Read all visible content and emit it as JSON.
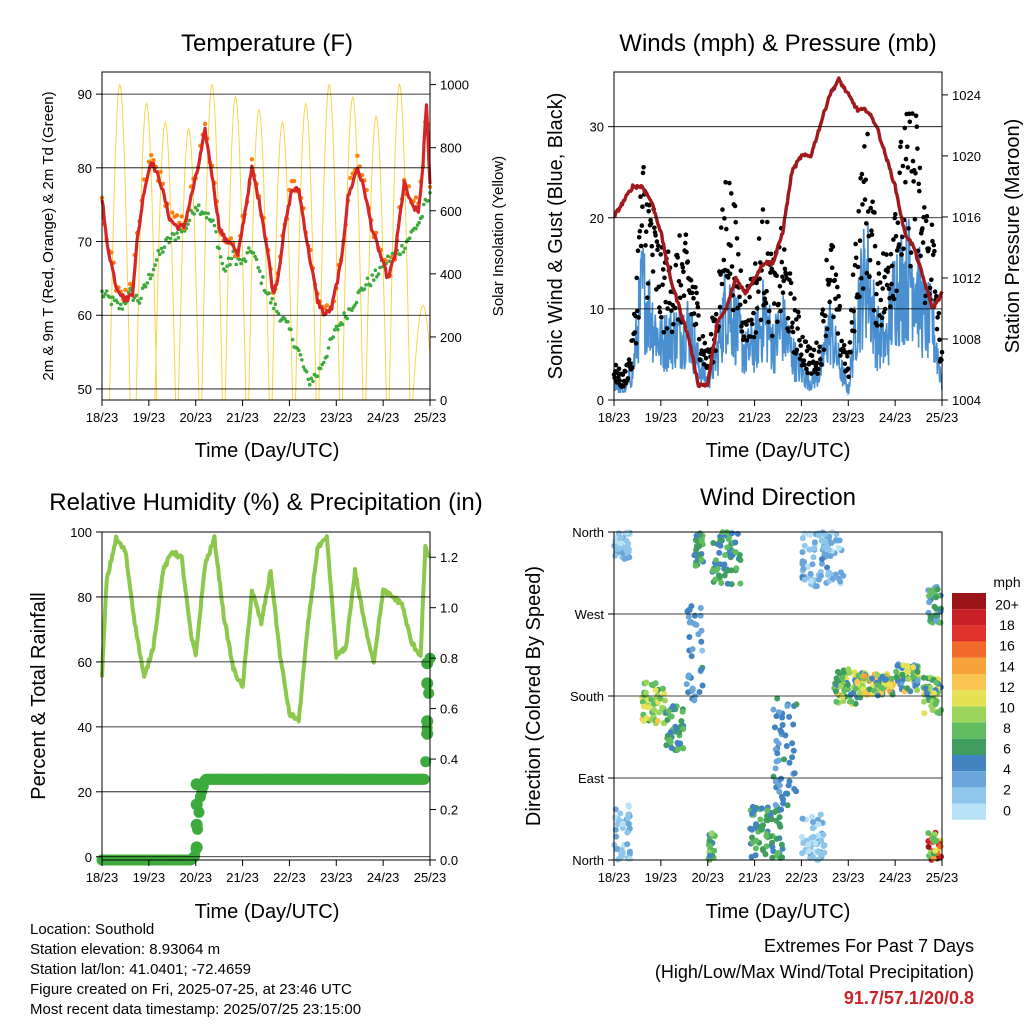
{
  "x_ticks": [
    "18/23",
    "19/23",
    "20/23",
    "21/23",
    "22/23",
    "23/23",
    "24/23",
    "25/23"
  ],
  "colors": {
    "temp2m": "#d62728",
    "temp9m": "#ff7f0e",
    "dewpoint": "#3daa3d",
    "solar": "#f5d64a",
    "wind": "#4a90d0",
    "gust": "#000000",
    "pressure": "#a0191d",
    "humidity": "#8cc84b",
    "rain": "#3daa3d",
    "extremes": "#c8242a"
  },
  "speed_colors": [
    "#b8e2f5",
    "#8ec6eb",
    "#6aa6d9",
    "#4283c2",
    "#3f9e5f",
    "#5fbd5f",
    "#9bd45a",
    "#e7e255",
    "#f8c550",
    "#f7a33a",
    "#f26b2b",
    "#e0322a",
    "#c81e26",
    "#9a1418"
  ],
  "chart_data": [
    {
      "type": "line",
      "title": "Temperature (F)",
      "xlabel": "Time (Day/UTC)",
      "ylabel": "2m & 9m T (Red, Orange) & 2m Td (Green)",
      "ylabel_right": "Solar Insolation (Yellow)",
      "ylim": [
        48.5,
        93
      ],
      "ylim_right": [
        0,
        1040
      ],
      "xlim": [
        0,
        7
      ],
      "yticks": [
        50,
        60,
        70,
        80,
        90
      ],
      "yticks_right": [
        0,
        200,
        400,
        600,
        800,
        1000
      ],
      "grid": true,
      "series": [
        {
          "x": [
            0,
            0.1,
            0.3,
            0.5,
            0.65,
            0.75,
            0.9,
            1.05,
            1.25,
            1.45,
            1.6,
            1.75,
            1.9,
            2.05,
            2.2,
            2.35,
            2.5,
            2.65,
            2.75,
            2.9,
            3.05,
            3.2,
            3.4,
            3.55,
            3.65,
            3.75,
            3.9,
            4.05,
            4.2,
            4.4,
            4.6,
            4.75,
            4.9,
            5.1,
            5.25,
            5.45,
            5.6,
            5.75,
            5.95,
            6.1,
            6.25,
            6.45,
            6.6,
            6.75,
            6.85,
            6.92,
            7
          ],
          "values": [
            76,
            70,
            64,
            62,
            63,
            70,
            77,
            81,
            78,
            73,
            72,
            72,
            76,
            80,
            85,
            79,
            72,
            70,
            70,
            68,
            74,
            80,
            74,
            68,
            63,
            65,
            72,
            77,
            77,
            69,
            62,
            60,
            61,
            67,
            76,
            80,
            77,
            72,
            68,
            65,
            68,
            78,
            75,
            74,
            80,
            89,
            78
          ]
        },
        {
          "x": [
            0,
            0.3,
            0.6,
            0.8,
            1.1,
            1.5,
            2.0,
            2.3,
            2.6,
            3.0,
            3.4,
            3.7,
            4.0,
            4.4,
            4.7,
            5.0,
            5.3,
            5.6,
            6.0,
            6.3,
            6.6,
            6.8,
            7
          ],
          "values": [
            64,
            67,
            61,
            66,
            80,
            72,
            77,
            84,
            71,
            70,
            77,
            63,
            74,
            76,
            58,
            63,
            77,
            78,
            66,
            72,
            82,
            90,
            77
          ]
        },
        {
          "x": [
            0,
            0.2,
            0.4,
            0.6,
            0.8,
            1.0,
            1.2,
            1.4,
            1.6,
            1.8,
            2.0,
            2.2,
            2.4,
            2.6,
            2.8,
            3.0,
            3.2,
            3.4,
            3.6,
            3.8,
            4.0,
            4.2,
            4.4,
            4.6,
            4.8,
            5.0,
            5.2,
            5.4,
            5.6,
            5.8,
            6.0,
            6.2,
            6.4,
            6.6,
            6.8,
            6.9,
            7
          ],
          "values": [
            63,
            62,
            61,
            63,
            62,
            65,
            68,
            70,
            71,
            72,
            75,
            74,
            72,
            66,
            68,
            67,
            69,
            65,
            62,
            60,
            58,
            55,
            51,
            52,
            55,
            58,
            60,
            62,
            64,
            65,
            67,
            68,
            69,
            71,
            73,
            75,
            76
          ]
        },
        {
          "peaks_x": [
            0.38,
            0.95,
            1.35,
            1.85,
            2.35,
            2.85,
            3.35,
            3.85,
            4.35,
            4.85,
            5.35,
            5.85,
            6.35,
            6.85
          ],
          "peaks": [
            1000,
            940,
            880,
            860,
            1000,
            960,
            920,
            880,
            940,
            1000,
            960,
            900,
            1000,
            300
          ]
        }
      ]
    },
    {
      "type": "scatter",
      "title": "Winds (mph) & Pressure (mb)",
      "xlabel": "Time (Day/UTC)",
      "ylabel": "Sonic Wind & Gust (Blue, Black)",
      "ylabel_right": "Station Pressure (Maroon)",
      "ylim": [
        0,
        36
      ],
      "ylim_right": [
        1004,
        1025.5
      ],
      "xlim": [
        0,
        7
      ],
      "yticks": [
        0,
        10,
        20,
        30
      ],
      "yticks_right": [
        1004,
        1008,
        1012,
        1016,
        1020,
        1024
      ],
      "grid": true,
      "series": [
        {
          "x": [
            0,
            0.2,
            0.4,
            0.6,
            0.8,
            1.0,
            1.2,
            1.4,
            1.6,
            1.8,
            2.0,
            2.2,
            2.4,
            2.6,
            2.8,
            3.0,
            3.2,
            3.4,
            3.6,
            3.8,
            4.0,
            4.2,
            4.4,
            4.6,
            4.8,
            5.0,
            5.2,
            5.4,
            5.6,
            5.8,
            6.0,
            6.2,
            6.4,
            6.6,
            6.8,
            7
          ],
          "values": [
            2,
            1,
            3,
            12,
            9,
            6,
            7,
            7,
            8,
            4,
            2,
            5,
            11,
            8,
            5,
            6,
            9,
            6,
            8,
            5,
            3,
            2,
            3,
            8,
            4,
            1,
            10,
            14,
            7,
            6,
            12,
            13,
            14,
            9,
            8,
            2
          ]
        },
        {
          "x": [
            0,
            0.2,
            0.4,
            0.6,
            0.8,
            1.0,
            1.2,
            1.4,
            1.6,
            1.8,
            2.0,
            2.2,
            2.4,
            2.6,
            2.8,
            3.0,
            3.2,
            3.4,
            3.6,
            3.8,
            4.0,
            4.2,
            4.4,
            4.6,
            4.8,
            5.0,
            5.2,
            5.4,
            5.6,
            5.8,
            6.0,
            6.2,
            6.4,
            6.6,
            6.8,
            7
          ],
          "values": [
            3,
            2,
            5,
            20,
            17,
            12,
            12,
            13,
            13,
            8,
            4,
            9,
            20,
            15,
            9,
            11,
            16,
            11,
            14,
            9,
            6,
            4,
            5,
            15,
            8,
            3,
            17,
            22,
            13,
            12,
            19,
            22,
            25,
            17,
            15,
            4
          ]
        },
        {
          "x": [
            0,
            0.2,
            0.4,
            0.6,
            0.8,
            1.0,
            1.2,
            1.4,
            1.6,
            1.8,
            2.0,
            2.2,
            2.4,
            2.6,
            2.8,
            3.0,
            3.2,
            3.4,
            3.6,
            3.8,
            4.0,
            4.2,
            4.4,
            4.6,
            4.8,
            5.0,
            5.2,
            5.4,
            5.6,
            5.8,
            6.0,
            6.2,
            6.4,
            6.6,
            6.8,
            7
          ],
          "values": [
            1016,
            1017,
            1018,
            1018,
            1017,
            1015,
            1012,
            1010,
            1008,
            1005,
            1005,
            1009,
            1010,
            1012,
            1011,
            1012,
            1013,
            1013,
            1015,
            1019,
            1020,
            1020,
            1022,
            1024,
            1025,
            1024,
            1023,
            1023,
            1022,
            1020,
            1018,
            1015,
            1014,
            1012,
            1010,
            1011
          ]
        }
      ]
    },
    {
      "type": "line",
      "title": "Relative Humidity (%) & Precipitation (in)",
      "xlabel": "Time (Day/UTC)",
      "ylabel": "Percent & Total Rainfall",
      "ylim": [
        -1,
        100
      ],
      "ylim_right": [
        0,
        1.3
      ],
      "xlim": [
        0,
        7
      ],
      "yticks": [
        0,
        20,
        40,
        60,
        80,
        100
      ],
      "yticks_right": [
        0.0,
        0.2,
        0.4,
        0.6,
        0.8,
        1.0,
        1.2
      ],
      "grid": true,
      "series": [
        {
          "x": [
            0,
            0.1,
            0.3,
            0.5,
            0.7,
            0.9,
            1.1,
            1.3,
            1.5,
            1.7,
            1.9,
            2.0,
            2.2,
            2.4,
            2.6,
            2.8,
            3.0,
            3.2,
            3.4,
            3.6,
            3.8,
            4.0,
            4.2,
            4.4,
            4.6,
            4.8,
            5.0,
            5.2,
            5.4,
            5.6,
            5.8,
            6.0,
            6.2,
            6.4,
            6.6,
            6.8,
            6.9,
            7
          ],
          "values": [
            56,
            85,
            98,
            94,
            72,
            55,
            65,
            88,
            94,
            92,
            68,
            62,
            90,
            98,
            74,
            58,
            52,
            82,
            72,
            88,
            62,
            44,
            42,
            72,
            95,
            98,
            62,
            64,
            88,
            72,
            60,
            82,
            80,
            78,
            66,
            62,
            95,
            92
          ]
        },
        {
          "x": [
            0,
            0.5,
            1.0,
            1.5,
            1.9,
            2.0,
            2.05,
            2.1,
            2.2,
            3.0,
            4.0,
            5.0,
            6.0,
            6.9,
            6.92,
            6.95,
            6.98,
            7
          ],
          "values": [
            0,
            0,
            0,
            0,
            0,
            0.02,
            0.15,
            0.25,
            0.32,
            0.32,
            0.32,
            0.32,
            0.32,
            0.32,
            0.48,
            0.55,
            0.72,
            0.8
          ]
        }
      ]
    },
    {
      "type": "scatter",
      "title": "Wind Direction",
      "xlabel": "Time (Day/UTC)",
      "ylabel": "Direction (Colored By Speed)",
      "yticks": [
        "North",
        "East",
        "South",
        "West",
        "North"
      ],
      "ylim": [
        0,
        360
      ],
      "xlim": [
        0,
        7
      ],
      "grid": true,
      "legend": {
        "title": "mph",
        "labels": [
          "20+",
          "18",
          "16",
          "14",
          "12",
          "10",
          "8",
          "6",
          "4",
          "2",
          "0"
        ],
        "placement": "right"
      },
      "clusters": [
        {
          "x0": 0.0,
          "x1": 0.35,
          "d0": 330,
          "d1": 360,
          "s0": 0,
          "s1": 3
        },
        {
          "x0": 0.0,
          "x1": 0.35,
          "d0": 0,
          "d1": 60,
          "s0": 0,
          "s1": 3
        },
        {
          "x0": 0.6,
          "x1": 1.1,
          "d0": 150,
          "d1": 195,
          "s0": 6,
          "s1": 12
        },
        {
          "x0": 1.1,
          "x1": 1.5,
          "d0": 120,
          "d1": 170,
          "s0": 4,
          "s1": 8
        },
        {
          "x0": 1.55,
          "x1": 1.9,
          "d0": 170,
          "d1": 280,
          "s0": 2,
          "s1": 6
        },
        {
          "x0": 1.7,
          "x1": 1.9,
          "d0": 320,
          "d1": 360,
          "s0": 5,
          "s1": 8
        },
        {
          "x0": 2.1,
          "x1": 2.7,
          "d0": 300,
          "d1": 360,
          "s0": 4,
          "s1": 8
        },
        {
          "x0": 2.0,
          "x1": 2.15,
          "d0": 0,
          "d1": 30,
          "s0": 4,
          "s1": 10
        },
        {
          "x0": 2.9,
          "x1": 3.6,
          "d0": 0,
          "d1": 60,
          "s0": 4,
          "s1": 8
        },
        {
          "x0": 3.4,
          "x1": 3.9,
          "d0": 60,
          "d1": 180,
          "s0": 3,
          "s1": 6
        },
        {
          "x0": 4.0,
          "x1": 4.9,
          "d0": 300,
          "d1": 360,
          "s0": 0,
          "s1": 4
        },
        {
          "x0": 4.0,
          "x1": 4.5,
          "d0": 0,
          "d1": 50,
          "s0": 0,
          "s1": 3
        },
        {
          "x0": 4.7,
          "x1": 5.3,
          "d0": 170,
          "d1": 210,
          "s0": 4,
          "s1": 12
        },
        {
          "x0": 5.3,
          "x1": 6.0,
          "d0": 180,
          "d1": 205,
          "s0": 4,
          "s1": 14
        },
        {
          "x0": 6.0,
          "x1": 6.5,
          "d0": 185,
          "d1": 215,
          "s0": 3,
          "s1": 12
        },
        {
          "x0": 6.6,
          "x1": 7.0,
          "d0": 160,
          "d1": 200,
          "s0": 4,
          "s1": 12
        },
        {
          "x0": 6.7,
          "x1": 7.0,
          "d0": 0,
          "d1": 30,
          "s0": 6,
          "s1": 20
        },
        {
          "x0": 6.7,
          "x1": 7.0,
          "d0": 260,
          "d1": 300,
          "s0": 3,
          "s1": 8
        }
      ]
    }
  ],
  "info": {
    "location": "Location: Southold",
    "elevation": "Station elevation: 8.93064 m",
    "latlon": "Station lat/lon: 41.0401; -72.4659",
    "created": "Figure created on Fri, 2025-07-25, at 23:46 UTC",
    "recent": "Most recent data timestamp: 2025/07/25 23:15:00"
  },
  "extremes": {
    "line1": "Extremes For Past 7 Days",
    "line2": "(High/Low/Max Wind/Total Precipitation)",
    "value": "91.7/57.1/20/0.8"
  }
}
